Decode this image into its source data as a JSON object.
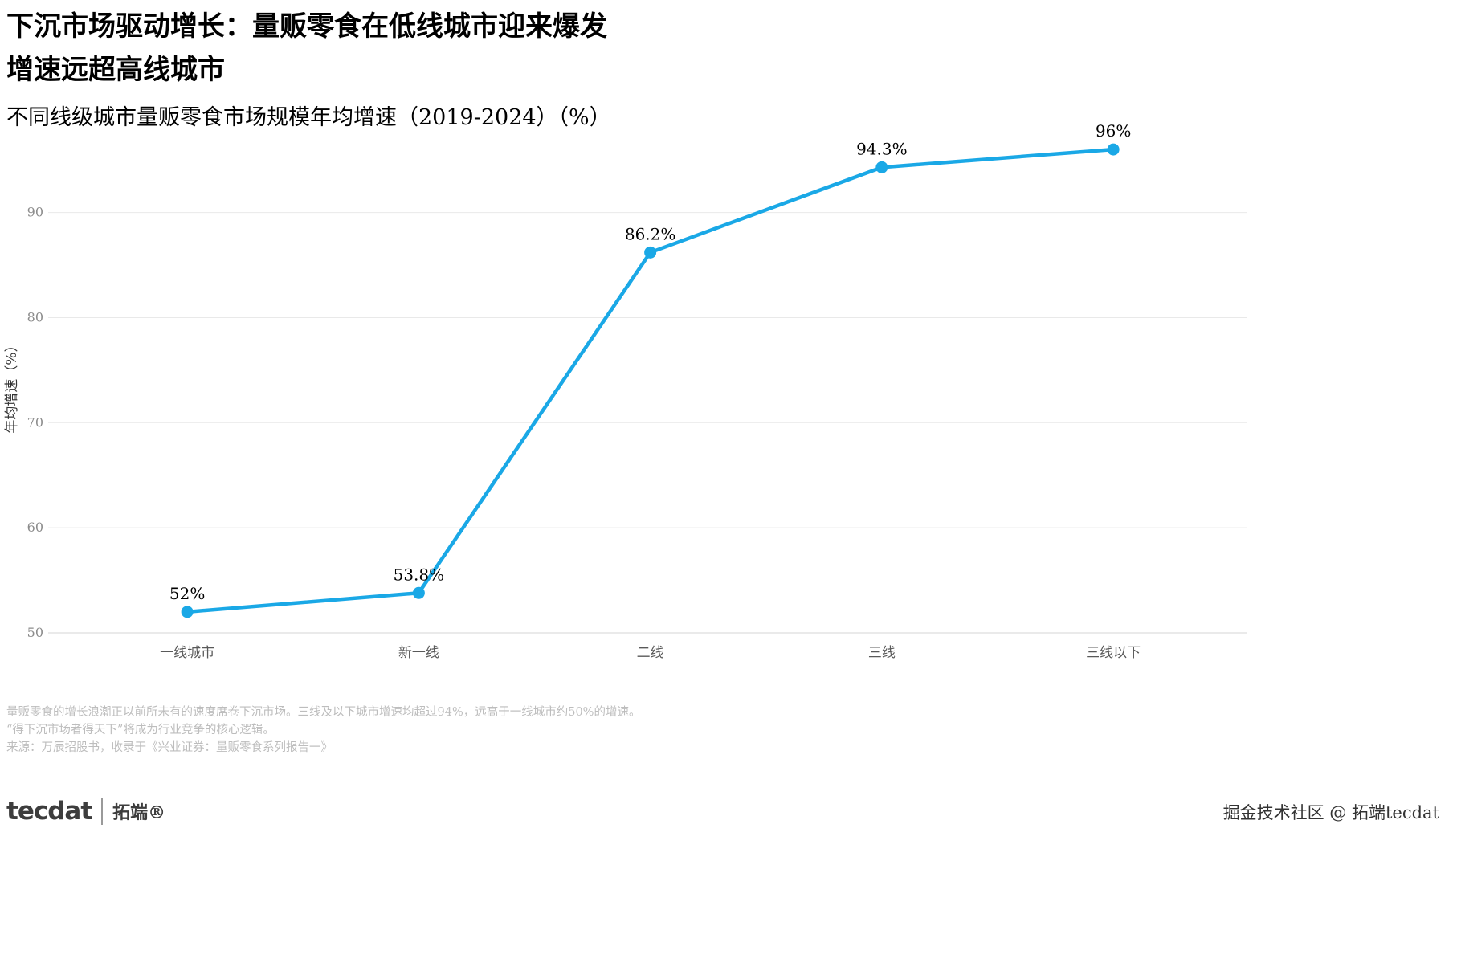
{
  "header": {
    "title_line1": "下沉市场驱动增长：量贩零食在低线城市迎来爆发",
    "title_line2": "增速远超高线城市",
    "subtitle": "不同线级城市量贩零食市场规模年均增速（2019-2024）（%）"
  },
  "chart_data": {
    "type": "line",
    "categories": [
      "一线城市",
      "新一线",
      "二线",
      "三线",
      "三线以下"
    ],
    "values": [
      52,
      53.8,
      86.2,
      94.3,
      96
    ],
    "value_labels": [
      "52%",
      "53.8%",
      "86.2%",
      "94.3%",
      "96%"
    ],
    "ylabel": "年均增速（%）",
    "xlabel": "",
    "yticks": [
      50,
      60,
      70,
      80,
      90
    ],
    "ylim": [
      50,
      97
    ],
    "line_color": "#1aa8e6",
    "grid": true,
    "legend_position": "none"
  },
  "notes": {
    "line1": "量贩零食的增长浪潮正以前所未有的速度席卷下沉市场。三线及以下城市增速均超过94%，远高于一线城市约50%的增速。",
    "line2": "“得下沉市场者得天下”将成为行业竞争的核心逻辑。",
    "line3": "来源：万辰招股书，收录于《兴业证券：量贩零食系列报告一》"
  },
  "footer": {
    "logo_text": "tecdat",
    "logo_suffix": "拓端®",
    "credit": "掘金技术社区 @ 拓端tecdat"
  }
}
